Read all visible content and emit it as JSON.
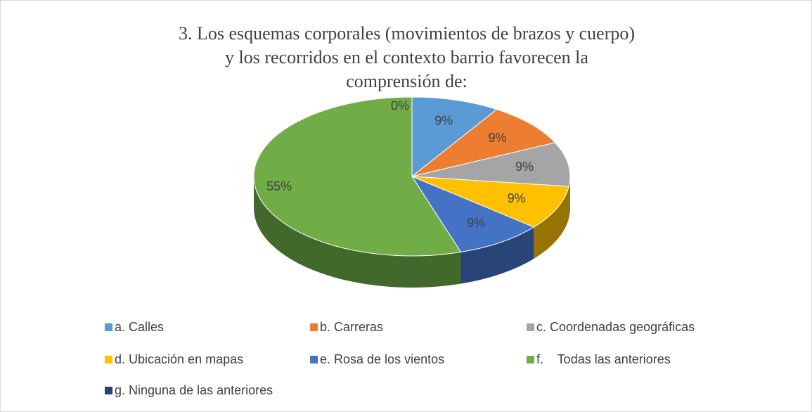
{
  "chart_data": {
    "type": "pie",
    "title": "3. Los esquemas corporales (movimientos de brazos y cuerpo) y los recorridos en el contexto barrio favorecen la comprensión de:",
    "categories": [
      "a. Calles",
      "b. Carreras",
      "c. Coordenadas geográficas",
      "d. Ubicación en mapas",
      "e. Rosa de los vientos",
      "f.    Todas las anteriores",
      "g. Ninguna de las anteriores"
    ],
    "values": [
      9,
      9,
      9,
      9,
      9,
      55,
      0
    ],
    "value_labels": [
      "9%",
      "9%",
      "9%",
      "9%",
      "9%",
      "55%",
      "0%"
    ],
    "colors": [
      "#5b9bd5",
      "#ed7d31",
      "#a5a5a5",
      "#ffc000",
      "#4472c4",
      "#70ad47",
      "#264478"
    ],
    "legend": "bottom"
  }
}
